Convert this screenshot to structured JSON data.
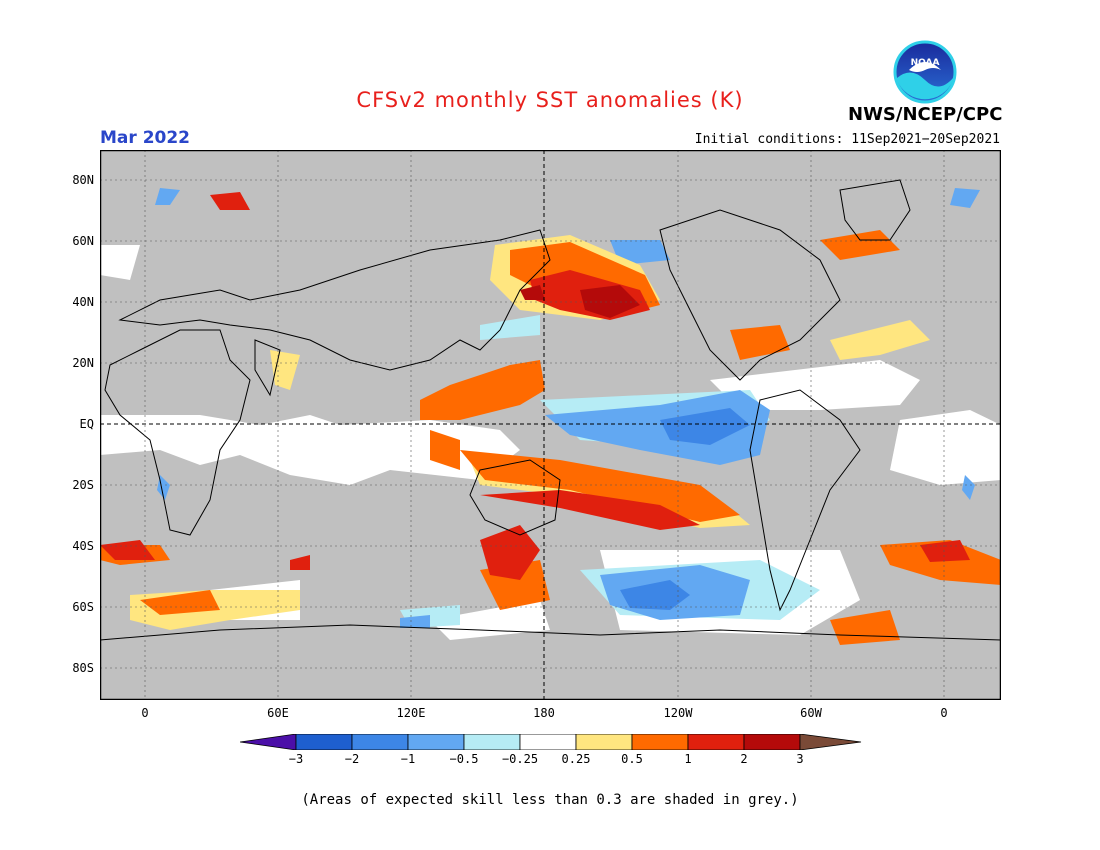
{
  "header": {
    "title": "CFSv2 monthly SST anomalies (K)",
    "valid_month": "Mar 2022",
    "initial_conditions": "Initial conditions: 11Sep2021−20Sep2021",
    "agency": "NWS/NCEP/CPC",
    "logo_text": "NOAA"
  },
  "map": {
    "lat_labels": [
      "80N",
      "60N",
      "40N",
      "20N",
      "EQ",
      "20S",
      "40S",
      "60S",
      "80S"
    ],
    "lon_labels": [
      "0",
      "60E",
      "120E",
      "180",
      "120W",
      "60W",
      "0"
    ],
    "land_color": "#c0c0c0",
    "grey_meaning": "skill less than 0.3"
  },
  "legend": {
    "tick_labels": [
      "−3",
      "−2",
      "−1",
      "−0.5",
      "−0.25",
      "0.25",
      "0.5",
      "1",
      "2",
      "3"
    ],
    "colors": [
      "#4b0fa8",
      "#1e5fcf",
      "#3d86e6",
      "#62a8f2",
      "#b6ecf5",
      "#ffffff",
      "#ffe680",
      "#ff6a00",
      "#e0200e",
      "#b40a0a",
      "#7a4a37"
    ]
  },
  "footnote": "(Areas of expected skill less than 0.3 are shaded in grey.)"
}
